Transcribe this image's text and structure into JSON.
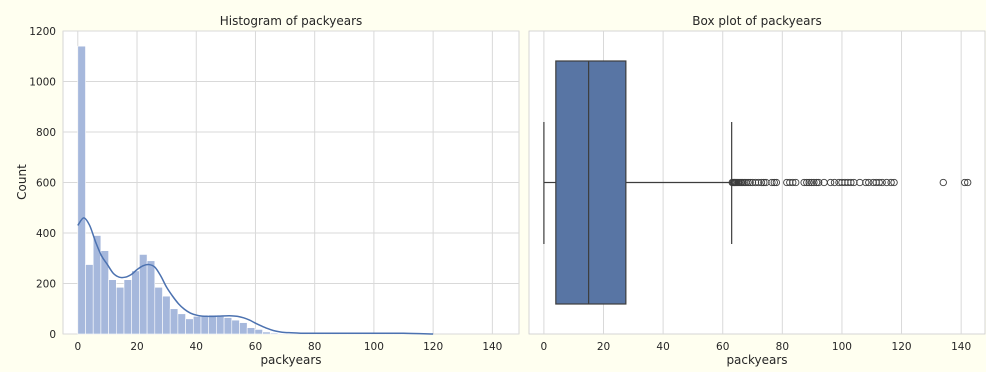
{
  "chart_data": [
    {
      "type": "bar",
      "subtype": "histogram",
      "title": "Histogram of packyears",
      "xlabel": "packyears",
      "ylabel": "Count",
      "xlim": [
        -5,
        149
      ],
      "ylim": [
        0,
        1200
      ],
      "xticks": [
        0,
        20,
        40,
        60,
        80,
        100,
        120,
        140
      ],
      "yticks": [
        0,
        200,
        400,
        600,
        800,
        1000,
        1200
      ],
      "grid": true,
      "bar_color": "#a6b8dc",
      "bar_edge_color": "#ffffff",
      "kde_color": "#4c72b0",
      "bins": {
        "start": 0,
        "width": 2.6,
        "values": [
          1140,
          275,
          390,
          330,
          215,
          185,
          215,
          250,
          315,
          290,
          185,
          150,
          100,
          80,
          60,
          70,
          70,
          75,
          70,
          65,
          55,
          45,
          25,
          18,
          8,
          4,
          2,
          2,
          2,
          2,
          2,
          2,
          1,
          1,
          1,
          1,
          1,
          1,
          1,
          1,
          1,
          1,
          1,
          1,
          1,
          1
        ]
      },
      "kde": {
        "x": [
          0,
          2,
          4,
          6,
          8,
          10,
          12,
          14,
          16,
          18,
          20,
          22,
          24,
          26,
          28,
          30,
          32,
          34,
          36,
          38,
          40,
          42,
          44,
          46,
          48,
          50,
          52,
          54,
          56,
          58,
          60,
          62,
          64,
          66,
          68,
          70,
          72,
          74,
          76,
          80,
          90,
          100,
          110,
          120
        ],
        "y": [
          430,
          460,
          430,
          365,
          310,
          275,
          240,
          225,
          225,
          235,
          255,
          270,
          275,
          265,
          230,
          185,
          150,
          120,
          98,
          83,
          75,
          71,
          70,
          70,
          71,
          72,
          72,
          70,
          64,
          55,
          43,
          32,
          22,
          14,
          9,
          6,
          5,
          4,
          3,
          3,
          3,
          3,
          3,
          0
        ]
      }
    },
    {
      "type": "box",
      "title": "Box plot of packyears",
      "xlabel": "packyears",
      "xlim": [
        -5,
        148
      ],
      "xticks": [
        0,
        20,
        40,
        60,
        80,
        100,
        120,
        140
      ],
      "grid": true,
      "box_color": "#5875a4",
      "line_color": "#3d3d3d",
      "stats": {
        "min": 0,
        "q1": 4,
        "median": 15,
        "q3": 27.5,
        "whisker_high": 63
      },
      "outliers": [
        63.2,
        63.5,
        63.8,
        64,
        64.3,
        64.6,
        65,
        65.4,
        65.8,
        66.2,
        66.7,
        67.2,
        67.8,
        68.5,
        69.2,
        70,
        71,
        72,
        73,
        73.8,
        74.5,
        76.5,
        77.3,
        78,
        81.5,
        82.5,
        83.5,
        84.5,
        87.3,
        88.2,
        89,
        89.8,
        90.6,
        91.5,
        92.2,
        94,
        96.2,
        97.5,
        99,
        100,
        101,
        102,
        103,
        104,
        106,
        108,
        109,
        110.5,
        111.5,
        112.5,
        113.5,
        115,
        116.5,
        117.5,
        134,
        141.2,
        142.2
      ]
    }
  ]
}
